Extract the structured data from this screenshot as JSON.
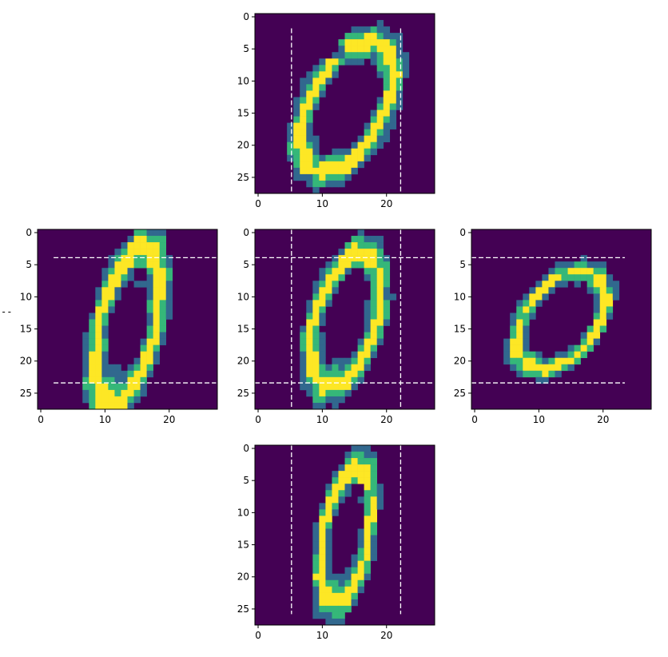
{
  "stray_mark": "--",
  "colors": {
    "background": "#440154",
    "low": "#31688e",
    "mid": "#35b779",
    "high": "#fde725",
    "guide": "#ffffff"
  },
  "chart_data": [
    {
      "type": "heatmap",
      "colormap": "viridis",
      "position": "top",
      "xlim": [
        -0.5,
        27.5
      ],
      "ylim": [
        27.5,
        -0.5
      ],
      "xticks": [
        0,
        10,
        20
      ],
      "yticks": [
        0,
        5,
        10,
        15,
        20,
        25
      ],
      "transform": "squeeze-x",
      "guides": {
        "vertical": [
          5.2,
          22.2
        ],
        "horizontal": [],
        "v_range": [
          1.8,
          27.3
        ],
        "h_range": []
      },
      "ring": {
        "cx": 13.8,
        "cy": 14.0,
        "rx": 5.5,
        "ry": 10.0,
        "width": 2.3,
        "tilt": 0.55
      },
      "notch": {
        "x": 12.0,
        "y": 5.5
      }
    },
    {
      "type": "heatmap",
      "colormap": "viridis",
      "position": "left",
      "xlim": [
        -0.5,
        27.5
      ],
      "ylim": [
        27.5,
        -0.5
      ],
      "xticks": [
        0,
        10,
        20
      ],
      "yticks": [
        0,
        5,
        10,
        15,
        20,
        25
      ],
      "transform": "stretch-y",
      "guides": {
        "vertical": [],
        "horizontal": [
          3.9,
          23.4
        ],
        "v_range": [],
        "h_range": [
          2.0,
          27.3
        ]
      },
      "ring": {
        "cx": 13.5,
        "cy": 14.5,
        "rx": 4.2,
        "ry": 11.8,
        "width": 2.4,
        "tilt": 0.35
      },
      "notch": {
        "x": 15.5,
        "y": 6.5
      }
    },
    {
      "type": "heatmap",
      "colormap": "viridis",
      "position": "center",
      "xlim": [
        -0.5,
        27.5
      ],
      "ylim": [
        27.5,
        -0.5
      ],
      "xticks": [
        0,
        10,
        20
      ],
      "yticks": [
        0,
        5,
        10,
        15,
        20,
        25
      ],
      "transform": "original",
      "guides": {
        "vertical": [
          5.2,
          22.2
        ],
        "horizontal": [
          3.9,
          23.4
        ],
        "v_range": [
          -0.5,
          27.5
        ],
        "h_range": [
          -0.5,
          27.5
        ]
      },
      "ring": {
        "cx": 13.6,
        "cy": 13.6,
        "rx": 4.5,
        "ry": 10.2,
        "width": 2.3,
        "tilt": 0.4
      },
      "notch": {
        "x": 15.5,
        "y": 6.2
      }
    },
    {
      "type": "heatmap",
      "colormap": "viridis",
      "position": "right",
      "xlim": [
        -0.5,
        27.5
      ],
      "ylim": [
        27.5,
        -0.5
      ],
      "xticks": [
        0,
        10,
        20
      ],
      "yticks": [
        0,
        5,
        10,
        15,
        20,
        25
      ],
      "transform": "squeeze-y",
      "guides": {
        "vertical": [],
        "horizontal": [
          3.9,
          23.4
        ],
        "v_range": [],
        "h_range": [
          -0.5,
          23.4
        ]
      },
      "ring": {
        "cx": 13.4,
        "cy": 13.6,
        "rx": 5.2,
        "ry": 7.6,
        "width": 1.9,
        "tilt": 0.6
      },
      "notch": {
        "x": 15.0,
        "y": 9.2
      }
    },
    {
      "type": "heatmap",
      "colormap": "viridis",
      "position": "bottom",
      "xlim": [
        -0.5,
        27.5
      ],
      "ylim": [
        27.5,
        -0.5
      ],
      "xticks": [
        0,
        10,
        20
      ],
      "yticks": [
        0,
        5,
        10,
        15,
        20,
        25
      ],
      "transform": "squeeze-x-narrow",
      "guides": {
        "vertical": [
          5.2,
          22.2
        ],
        "horizontal": [],
        "v_range": [
          -0.5,
          25.8
        ],
        "h_range": []
      },
      "ring": {
        "cx": 13.7,
        "cy": 13.5,
        "rx": 3.4,
        "ry": 10.3,
        "width": 1.9,
        "tilt": 0.3
      },
      "notch": {
        "x": 15.4,
        "y": 6.2
      }
    }
  ]
}
